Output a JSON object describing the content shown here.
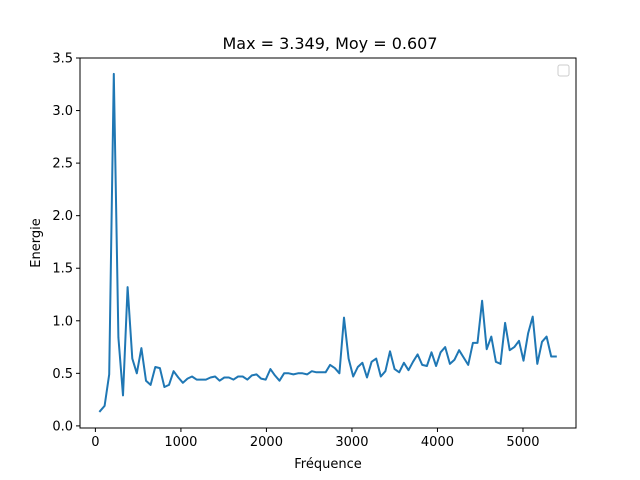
{
  "chart_data": {
    "type": "line",
    "title": "Max = 3.349, Moy = 0.607",
    "xlabel": "Fréquence",
    "ylabel": "Energie",
    "xlim": [
      -180,
      5620
    ],
    "ylim": [
      -0.02,
      3.5
    ],
    "xticks": [
      0,
      1000,
      2000,
      3000,
      4000,
      5000
    ],
    "yticks": [
      0.0,
      0.5,
      1.0,
      1.5,
      2.0,
      2.5,
      3.0,
      3.5
    ],
    "xtick_labels": [
      "0",
      "1000",
      "2000",
      "3000",
      "4000",
      "5000"
    ],
    "ytick_labels": [
      "0.0",
      "0.5",
      "1.0",
      "1.5",
      "2.0",
      "2.5",
      "3.0",
      "3.5"
    ],
    "grid": false,
    "legend": "top-right",
    "series": [
      {
        "color": "#1f77b4",
        "x": [
          54,
          108,
          161,
          215,
          269,
          323,
          377,
          431,
          484,
          538,
          592,
          646,
          700,
          754,
          807,
          861,
          915,
          969,
          1023,
          1077,
          1130,
          1184,
          1238,
          1292,
          1346,
          1400,
          1453,
          1507,
          1561,
          1615,
          1669,
          1723,
          1776,
          1830,
          1884,
          1938,
          1992,
          2046,
          2099,
          2153,
          2207,
          2261,
          2315,
          2369,
          2422,
          2476,
          2530,
          2584,
          2638,
          2692,
          2745,
          2799,
          2853,
          2907,
          2961,
          3015,
          3068,
          3122,
          3176,
          3230,
          3284,
          3338,
          3391,
          3445,
          3499,
          3553,
          3607,
          3661,
          3714,
          3768,
          3822,
          3876,
          3930,
          3984,
          4037,
          4091,
          4145,
          4199,
          4253,
          4307,
          4360,
          4414,
          4468,
          4522,
          4576,
          4630,
          4683,
          4737,
          4791,
          4845,
          4899,
          4953,
          5006,
          5060,
          5114,
          5168,
          5222,
          5276,
          5330,
          5384
        ],
        "y": [
          0.14,
          0.19,
          0.49,
          3.349,
          0.84,
          0.29,
          1.32,
          0.64,
          0.5,
          0.74,
          0.43,
          0.39,
          0.56,
          0.55,
          0.37,
          0.39,
          0.52,
          0.46,
          0.41,
          0.45,
          0.47,
          0.44,
          0.44,
          0.44,
          0.46,
          0.47,
          0.43,
          0.46,
          0.46,
          0.44,
          0.47,
          0.47,
          0.44,
          0.48,
          0.49,
          0.45,
          0.44,
          0.54,
          0.48,
          0.43,
          0.5,
          0.5,
          0.49,
          0.5,
          0.5,
          0.49,
          0.52,
          0.51,
          0.51,
          0.51,
          0.58,
          0.55,
          0.5,
          1.03,
          0.64,
          0.47,
          0.56,
          0.6,
          0.46,
          0.61,
          0.64,
          0.47,
          0.52,
          0.71,
          0.54,
          0.51,
          0.6,
          0.53,
          0.61,
          0.68,
          0.58,
          0.57,
          0.7,
          0.57,
          0.7,
          0.75,
          0.59,
          0.63,
          0.72,
          0.65,
          0.58,
          0.79,
          0.79,
          1.19,
          0.73,
          0.85,
          0.61,
          0.59,
          0.98,
          0.72,
          0.75,
          0.81,
          0.62,
          0.88,
          1.04,
          0.59,
          0.8,
          0.85,
          0.66,
          0.66
        ]
      }
    ]
  }
}
